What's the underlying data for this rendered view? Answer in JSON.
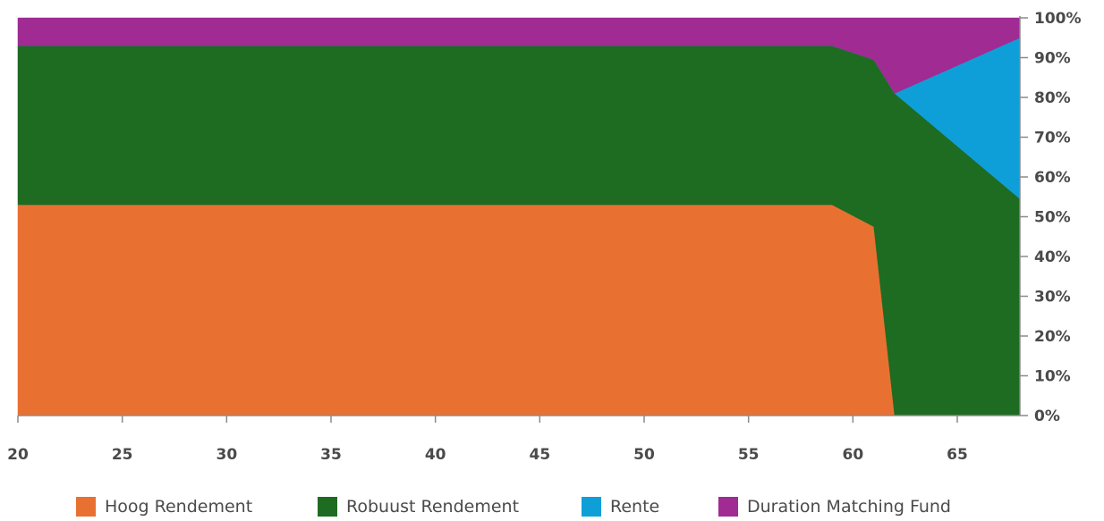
{
  "chart_data": {
    "type": "area",
    "stacked": true,
    "x": [
      20,
      59,
      61,
      62,
      68
    ],
    "x_ticks": [
      "20",
      "25",
      "30",
      "35",
      "40",
      "45",
      "50",
      "55",
      "60",
      "65"
    ],
    "y_ticks": [
      "0%",
      "10%",
      "20%",
      "30%",
      "40%",
      "50%",
      "60%",
      "70%",
      "80%",
      "90%",
      "100%"
    ],
    "xlim": [
      20,
      68
    ],
    "ylim": [
      0,
      100
    ],
    "y_axis_position": "right",
    "grid": false,
    "legend_position": "bottom",
    "series": [
      {
        "name": "Hoog Rendement",
        "color": "#e87132",
        "values": [
          53,
          53,
          47.5,
          0,
          0
        ]
      },
      {
        "name": "Robuust Rendement",
        "color": "#1e6b22",
        "values": [
          40,
          40,
          42,
          81,
          54.5
        ]
      },
      {
        "name": "Rente",
        "color": "#0f9fd8",
        "values": [
          0,
          0,
          0,
          0,
          40.5
        ]
      },
      {
        "name": "Duration Matching Fund",
        "color": "#a02b93",
        "values": [
          7,
          7,
          10.5,
          19,
          5
        ]
      }
    ]
  }
}
